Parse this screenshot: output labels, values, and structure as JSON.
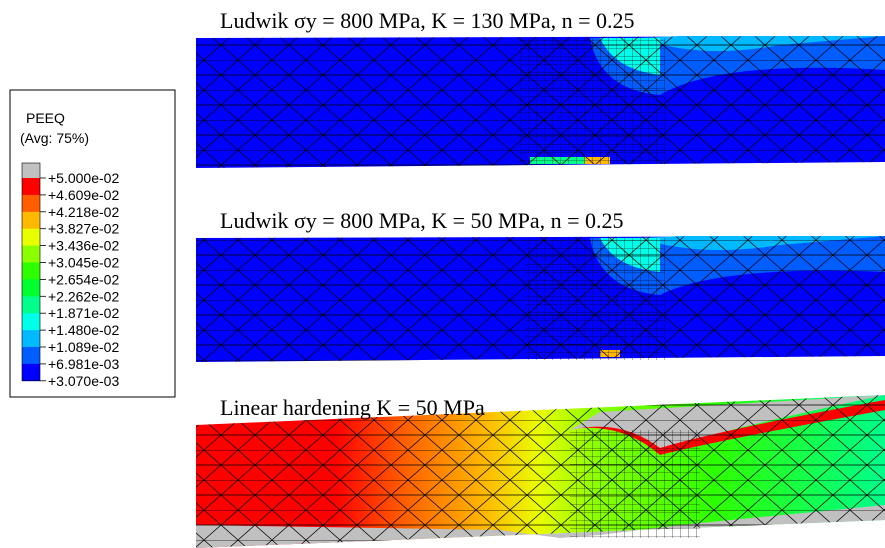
{
  "legend": {
    "title": "PEEQ",
    "subtitle": "(Avg: 75%)",
    "labels": [
      "+5.000e-02",
      "+4.609e-02",
      "+4.218e-02",
      "+3.827e-02",
      "+3.436e-02",
      "+3.045e-02",
      "+2.654e-02",
      "+2.262e-02",
      "+1.871e-02",
      "+1.480e-02",
      "+1.089e-02",
      "+6.981e-03",
      "+3.070e-03"
    ],
    "colors": [
      "#c0c0c0",
      "#ff0000",
      "#ff5d00",
      "#ffb900",
      "#e8ff00",
      "#8bff00",
      "#2eff00",
      "#00ff2e",
      "#00ff8b",
      "#00ffe8",
      "#00b9ff",
      "#005dff",
      "#0000ff"
    ]
  },
  "panels": [
    {
      "title": "Ludwik σy = 800 MPa, K = 130 MPa, n = 0.25"
    },
    {
      "title": "Ludwik σy = 800 MPa, K = 50 MPa, n = 0.25"
    },
    {
      "title": "Linear hardening K = 50 MPa"
    }
  ]
}
